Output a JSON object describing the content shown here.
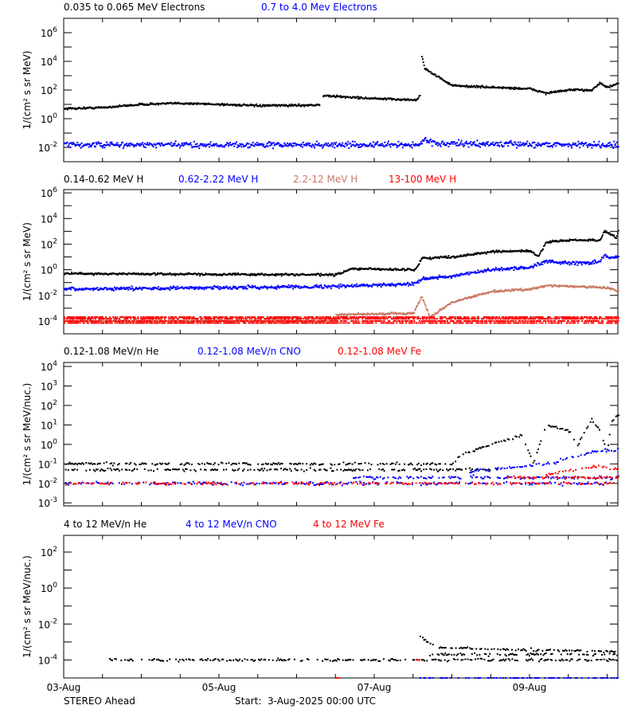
{
  "footer": {
    "spacecraft": "STEREO Ahead",
    "start": "Start:  3-Aug-2025 00:00 UTC"
  },
  "chart_data": {
    "type": "scatter",
    "xaxis": {
      "xlim": [
        "2025-08-03T00:00",
        "2025-08-10T03:20"
      ],
      "ticks": [
        {
          "date": "2025-08-03T00:00",
          "label": "03-Aug"
        },
        {
          "date": "2025-08-05T00:00",
          "label": "05-Aug"
        },
        {
          "date": "2025-08-07T00:00",
          "label": "07-Aug"
        },
        {
          "date": "2025-08-09T00:00",
          "label": "09-Aug"
        }
      ],
      "minor_tick_interval_hours": 12
    },
    "colors": {
      "black": "#000000",
      "blue": "#0000ff",
      "brown": "#c87a64",
      "red": "#ff0000"
    },
    "panels": [
      {
        "ylabel": "1/(cm² s sr MeV)",
        "yscale": "log",
        "ylim": [
          0.001,
          10000000
        ],
        "ytick_exponents": [
          6,
          4,
          2,
          0,
          -2
        ],
        "series": [
          {
            "name": "0.035 to 0.065 MeV Electrons",
            "color": "#000000",
            "tracks": [
              [
                [
                  "2025-08-03T00:00",
                  5
                ],
                [
                  "2025-08-03T12:00",
                  6
                ],
                [
                  "2025-08-04T00:00",
                  10
                ],
                [
                  "2025-08-04T12:00",
                  12
                ],
                [
                  "2025-08-05T00:00",
                  10
                ],
                [
                  "2025-08-05T12:00",
                  8
                ],
                [
                  "2025-08-06T07:00",
                  9
                ]
              ],
              [
                [
                  "2025-08-06T08:00",
                  40
                ],
                [
                  "2025-08-07T00:00",
                  25
                ],
                [
                  "2025-08-07T13:00",
                  20
                ],
                [
                  "2025-08-07T14:00",
                  50
                ]
              ],
              [
                [
                  "2025-08-07T14:30",
                  20000
                ],
                [
                  "2025-08-07T15:30",
                  3000
                ],
                [
                  "2025-08-08T00:00",
                  200
                ],
                [
                  "2025-08-09T00:00",
                  120
                ],
                [
                  "2025-08-09T05:00",
                  60
                ],
                [
                  "2025-08-09T12:00",
                  100
                ],
                [
                  "2025-08-09T19:00",
                  100
                ],
                [
                  "2025-08-09T21:30",
                  300
                ],
                [
                  "2025-08-10T00:00",
                  150
                ],
                [
                  "2025-08-10T03:20",
                  300
                ]
              ]
            ]
          },
          {
            "name": "0.7 to 4.0 Mev Electrons",
            "color": "#0000ff",
            "tracks": [
              [
                [
                  "2025-08-03T00:00",
                  0.015
                ],
                [
                  "2025-08-07T14:00",
                  0.015
                ],
                [
                  "2025-08-07T15:30",
                  0.04
                ],
                [
                  "2025-08-07T19:00",
                  0.018
                ],
                [
                  "2025-08-10T03:20",
                  0.015
                ]
              ]
            ]
          }
        ]
      },
      {
        "ylabel": "1/(cm² s sr MeV)",
        "yscale": "log",
        "ylim": [
          1e-05,
          1800000
        ],
        "ytick_exponents": [
          6,
          4,
          2,
          0,
          -2,
          -4
        ],
        "series": [
          {
            "name": "0.14-0.62 MeV H",
            "color": "#000000",
            "tracks": [
              [
                [
                  "2025-08-03T00:00",
                  0.5
                ],
                [
                  "2025-08-06T12:00",
                  0.4
                ],
                [
                  "2025-08-06T17:00",
                  1.2
                ],
                [
                  "2025-08-07T12:00",
                  1.0
                ],
                [
                  "2025-08-07T13:00",
                  1.5
                ],
                [
                  "2025-08-07T14:30",
                  8
                ],
                [
                  "2025-08-08T00:00",
                  10
                ],
                [
                  "2025-08-08T12:00",
                  25
                ],
                [
                  "2025-08-09T00:00",
                  30
                ],
                [
                  "2025-08-09T02:30",
                  10
                ],
                [
                  "2025-08-09T05:00",
                  150
                ],
                [
                  "2025-08-09T12:00",
                  200
                ],
                [
                  "2025-08-09T21:30",
                  200
                ],
                [
                  "2025-08-09T23:00",
                  1000
                ],
                [
                  "2025-08-10T02:30",
                  300
                ],
                [
                  "2025-08-10T03:20",
                  1200
                ]
              ]
            ]
          },
          {
            "name": "0.62-2.22 MeV H",
            "color": "#0000ff",
            "tracks": [
              [
                [
                  "2025-08-03T00:00",
                  0.03
                ],
                [
                  "2025-08-06T12:00",
                  0.05
                ],
                [
                  "2025-08-07T12:00",
                  0.08
                ],
                [
                  "2025-08-07T14:30",
                  0.2
                ],
                [
                  "2025-08-08T00:00",
                  0.3
                ],
                [
                  "2025-08-08T12:00",
                  1
                ],
                [
                  "2025-08-09T00:00",
                  1.5
                ],
                [
                  "2025-08-09T05:00",
                  5
                ],
                [
                  "2025-08-09T12:00",
                  3
                ],
                [
                  "2025-08-09T21:30",
                  4
                ],
                [
                  "2025-08-09T23:00",
                  15
                ],
                [
                  "2025-08-10T00:00",
                  8
                ],
                [
                  "2025-08-10T03:20",
                  10
                ]
              ]
            ]
          },
          {
            "name": "2.2-12 MeV H",
            "color": "#c87a64",
            "tracks": [
              [
                [
                  "2025-08-03T00:00",
                  0.0001
                ],
                [
                  "2025-08-06T12:00",
                  0.0001
                ]
              ],
              [
                [
                  "2025-08-06T12:00",
                  0.0003
                ],
                [
                  "2025-08-07T12:00",
                  0.0004
                ],
                [
                  "2025-08-07T14:30",
                  0.008
                ],
                [
                  "2025-08-07T17:00",
                  0.0002
                ],
                [
                  "2025-08-08T00:00",
                  0.003
                ],
                [
                  "2025-08-08T12:00",
                  0.02
                ],
                [
                  "2025-08-09T00:00",
                  0.03
                ],
                [
                  "2025-08-09T05:00",
                  0.06
                ],
                [
                  "2025-08-10T00:00",
                  0.04
                ],
                [
                  "2025-08-10T03:20",
                  0.02
                ]
              ]
            ]
          },
          {
            "name": "13-100 MeV H",
            "color": "#ff0000",
            "tracks": [
              [
                [
                  "2025-08-03T00:00",
                  0.00015
                ],
                [
                  "2025-08-10T03:20",
                  0.00015
                ]
              ],
              [
                [
                  "2025-08-03T00:00",
                  0.0001
                ],
                [
                  "2025-08-10T03:20",
                  0.0001
                ]
              ],
              [
                [
                  "2025-08-03T00:00",
                  7e-05
                ],
                [
                  "2025-08-10T03:20",
                  7e-05
                ]
              ],
              [
                [
                  "2025-08-03T00:00",
                  0.0002
                ],
                [
                  "2025-08-10T03:20",
                  0.0002
                ]
              ]
            ]
          }
        ]
      },
      {
        "ylabel": "1/(cm² s sr MeV/nuc.)",
        "yscale": "log",
        "ylim": [
          0.0007,
          16000
        ],
        "ytick_exponents": [
          4,
          3,
          2,
          1,
          0,
          -1,
          -2,
          -3
        ],
        "series": [
          {
            "name": "0.12-1.08 MeV/n He",
            "color": "#000000",
            "tracks": [
              [
                [
                  "2025-08-03T00:00",
                  0.05
                ],
                [
                  "2025-08-08T14:00",
                  0.05
                ]
              ],
              [
                [
                  "2025-08-03T00:00",
                  0.1
                ],
                [
                  "2025-08-06T17:00",
                  0.1
                ]
              ],
              [
                [
                  "2025-08-06T17:00",
                  0.1
                ],
                [
                  "2025-08-08T00:00",
                  0.1
                ],
                [
                  "2025-08-08T02:30",
                  0.3
                ],
                [
                  "2025-08-08T12:00",
                  1
                ],
                [
                  "2025-08-08T21:30",
                  3
                ],
                [
                  "2025-08-09T01:00",
                  0.1
                ],
                [
                  "2025-08-09T05:00",
                  10
                ],
                [
                  "2025-08-09T12:00",
                  5
                ],
                [
                  "2025-08-09T14:30",
                  0.8
                ],
                [
                  "2025-08-09T19:00",
                  20
                ],
                [
                  "2025-08-09T21:30",
                  5
                ],
                [
                  "2025-08-10T00:00",
                  0.5
                ],
                [
                  "2025-08-10T01:00",
                  15
                ],
                [
                  "2025-08-10T03:20",
                  30
                ]
              ]
            ]
          },
          {
            "name": "0.12-1.08 MeV/n CNO",
            "color": "#0000ff",
            "tracks": [
              [
                [
                  "2025-08-03T00:00",
                  0.01
                ],
                [
                  "2025-08-10T00:00",
                  0.01
                ]
              ],
              [
                [
                  "2025-08-06T17:00",
                  0.02
                ],
                [
                  "2025-08-10T03:20",
                  0.02
                ]
              ],
              [
                [
                  "2025-08-08T05:00",
                  0.04
                ],
                [
                  "2025-08-09T05:00",
                  0.1
                ],
                [
                  "2025-08-09T21:30",
                  0.5
                ],
                [
                  "2025-08-10T03:20",
                  0.5
                ]
              ]
            ]
          },
          {
            "name": "0.12-1.08 MeV Fe",
            "color": "#ff0000",
            "tracks": [
              [
                [
                  "2025-08-03T00:00",
                  0.01
                ],
                [
                  "2025-08-10T03:20",
                  0.01
                ]
              ],
              [
                [
                  "2025-08-08T17:00",
                  0.02
                ],
                [
                  "2025-08-10T03:20",
                  0.02
                ]
              ],
              [
                [
                  "2025-08-09T05:00",
                  0.03
                ],
                [
                  "2025-08-09T21:30",
                  0.08
                ],
                [
                  "2025-08-10T03:20",
                  0.05
                ]
              ]
            ]
          }
        ]
      },
      {
        "ylabel": "1/(cm² s sr MeV/nuc.)",
        "yscale": "log",
        "ylim": [
          1e-05,
          850
        ],
        "ytick_exponents": [
          2,
          0,
          -2,
          -4
        ],
        "series": [
          {
            "name": "4 to 12 MeV/n He",
            "color": "#000000",
            "tracks": [
              [
                [
                  "2025-08-03T14:00",
                  0.0001
                ],
                [
                  "2025-08-10T03:20",
                  0.0001
                ]
              ],
              [
                [
                  "2025-08-07T14:00",
                  0.002
                ],
                [
                  "2025-08-07T19:00",
                  0.0005
                ],
                [
                  "2025-08-08T12:00",
                  0.0004
                ],
                [
                  "2025-08-10T03:20",
                  0.0003
                ]
              ],
              [
                [
                  "2025-08-07T17:00",
                  0.0002
                ],
                [
                  "2025-08-10T03:20",
                  0.0002
                ]
              ]
            ]
          },
          {
            "name": "4 to 12 MeV/n CNO",
            "color": "#0000ff",
            "tracks": [
              [
                [
                  "2025-08-07T14:00",
                  1e-05
                ],
                [
                  "2025-08-10T03:20",
                  1e-05
                ]
              ]
            ]
          },
          {
            "name": "4 to 12 MeV Fe",
            "color": "#ff0000",
            "tracks": [
              [
                [
                  "2025-08-06T12:00",
                  1e-05
                ],
                [
                  "2025-08-06T13:00",
                  1e-05
                ]
              ],
              [
                [
                  "2025-08-07T13:00",
                  0.0001
                ],
                [
                  "2025-08-07T14:00",
                  0.0001
                ]
              ]
            ]
          }
        ]
      }
    ]
  }
}
